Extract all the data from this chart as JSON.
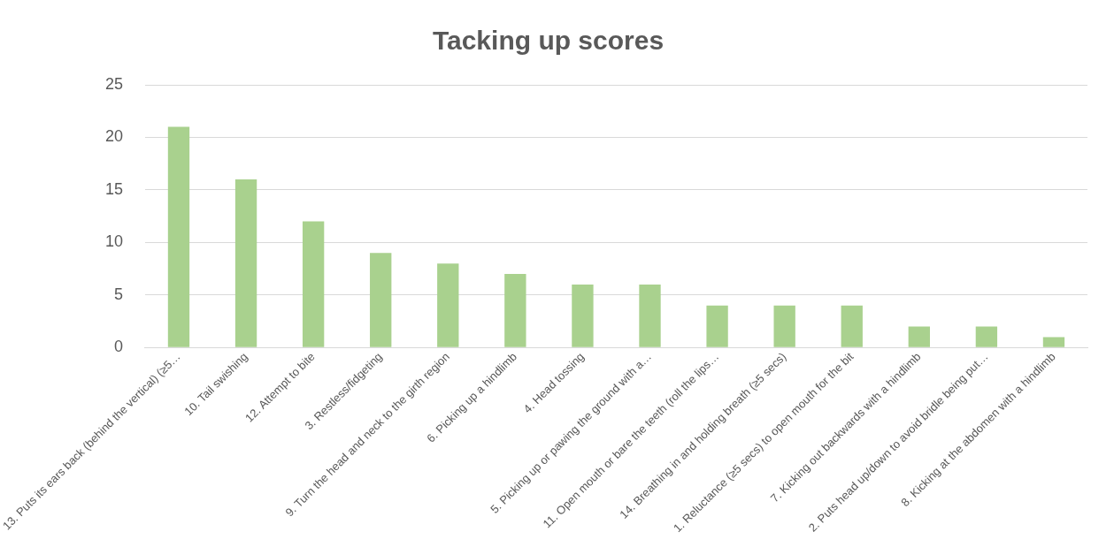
{
  "chart_data": {
    "type": "bar",
    "title": "Tacking up scores",
    "categories": [
      "13. Puts its ears back (behind the vertical) (≥5…",
      "10. Tail swishing",
      "12. Attempt to bite",
      "3. Restless/fidgeting",
      "9. Turn the head and neck to the girth region",
      "6. Picking up a hindlimb",
      "4. Head tossing",
      "5. Picking up or pawing the ground with a…",
      "11. Open mouth or bare the teeth (roll the lips…",
      "14. Breathing in and holding breath (≥5 secs)",
      "1. Reluctance (≥5 secs) to open mouth for the bit",
      "7. Kicking out backwards with a hindlimb",
      "2. Puts head up/down to avoid bridle being put…",
      "8. Kicking at the abdomen with a hindlimb"
    ],
    "values": [
      21,
      16,
      12,
      9,
      8,
      7,
      6,
      6,
      4,
      4,
      4,
      2,
      2,
      1
    ],
    "color": "#a9d18e",
    "ylim": [
      0,
      25
    ],
    "yticks": [
      0,
      5,
      10,
      15,
      20,
      25
    ],
    "grid": "y"
  }
}
